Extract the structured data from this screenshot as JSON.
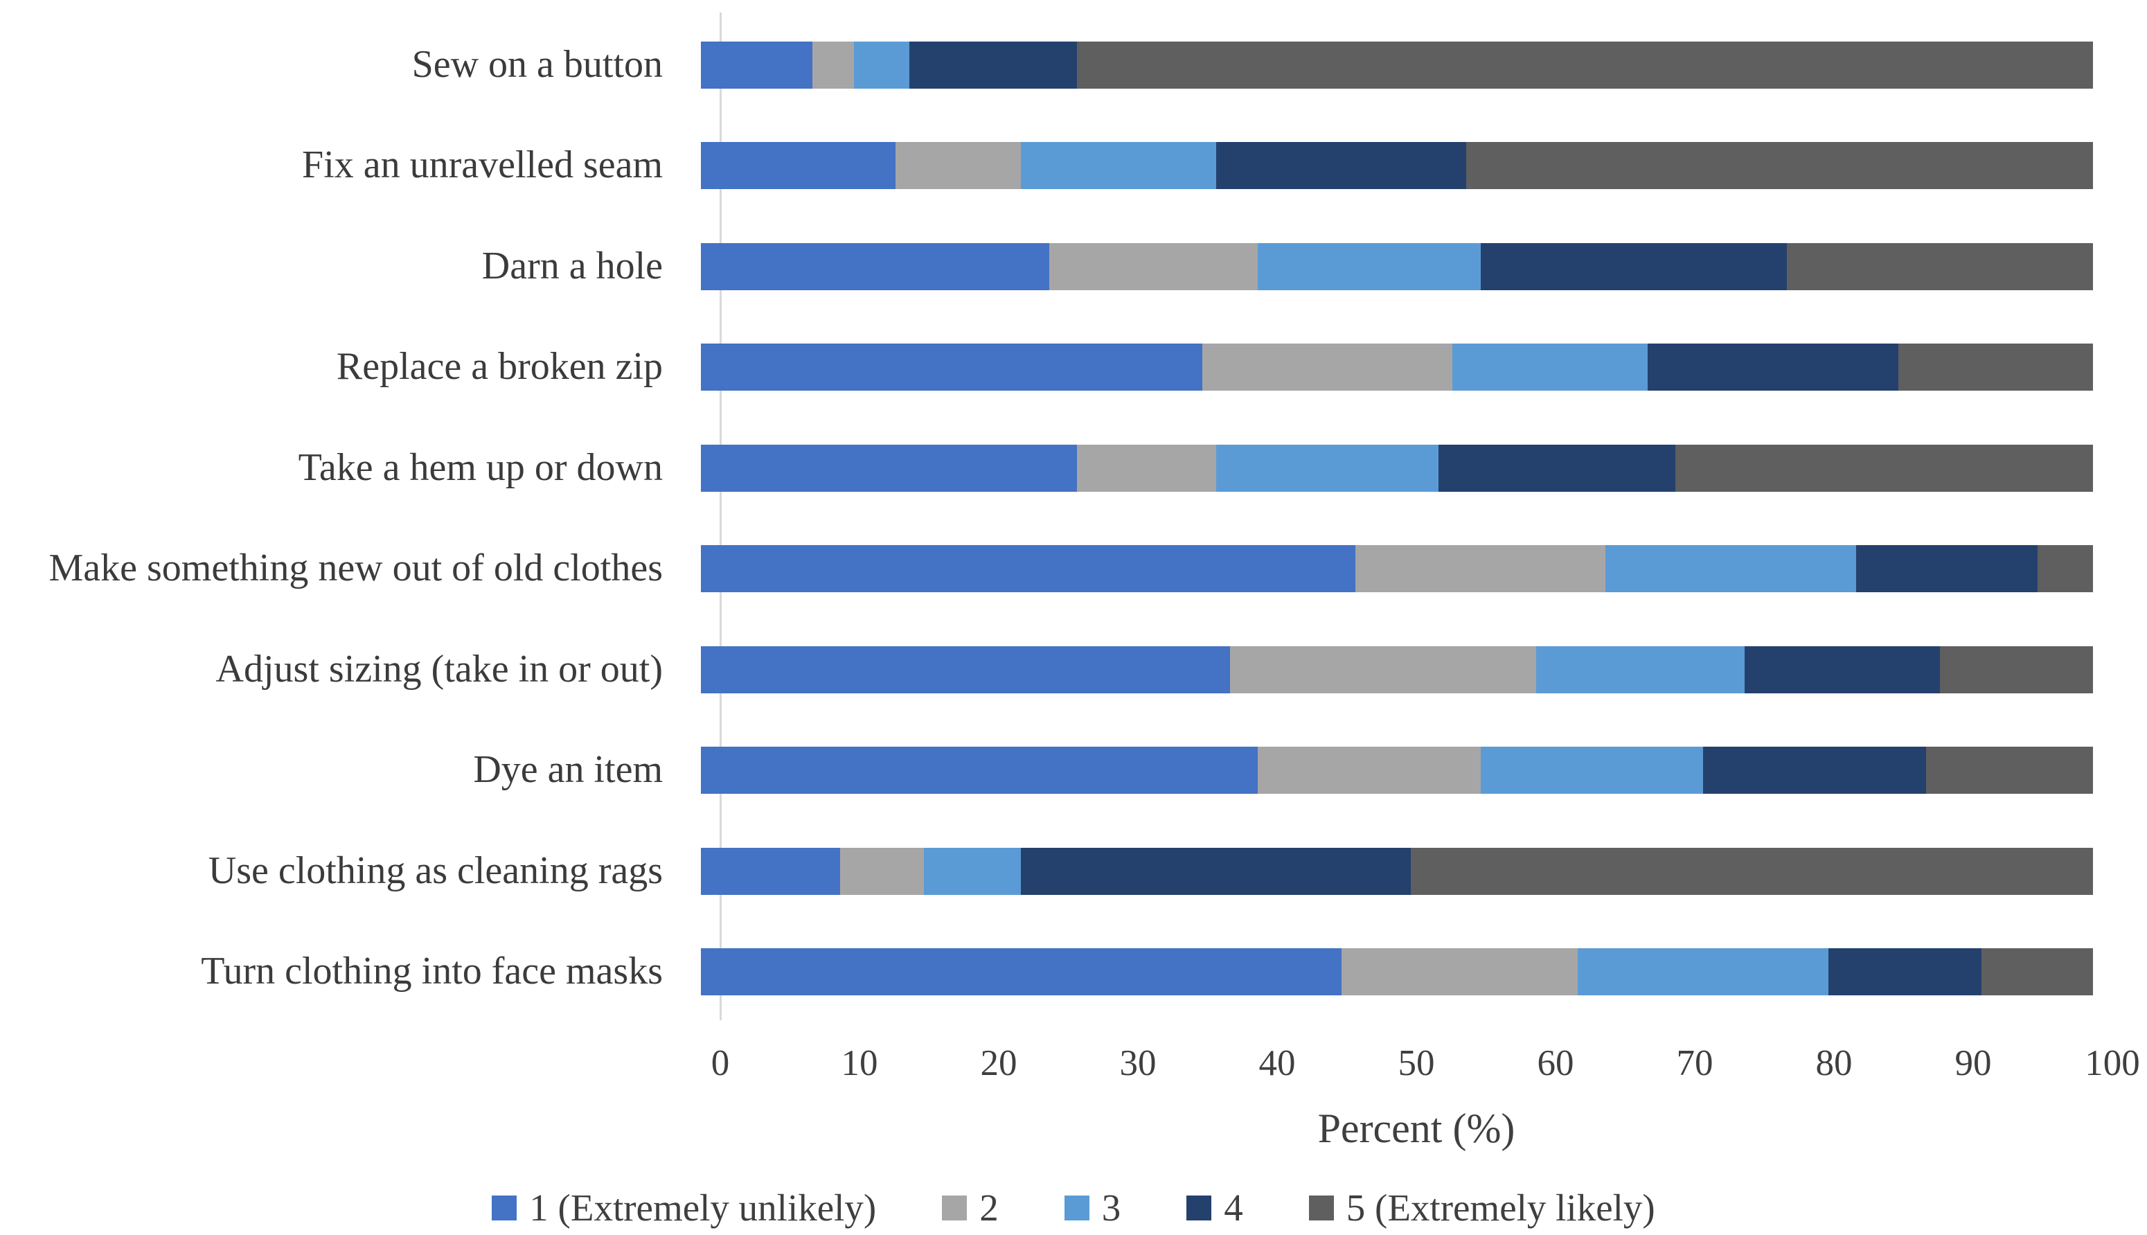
{
  "chart_data": {
    "type": "bar",
    "orientation": "horizontal",
    "stacked": true,
    "title": "",
    "xlabel": "Percent (%)",
    "ylabel": "",
    "xlim": [
      0,
      100
    ],
    "xticks": [
      0,
      10,
      20,
      30,
      40,
      50,
      60,
      70,
      80,
      90,
      100
    ],
    "grid": false,
    "legend_position": "bottom",
    "categories": [
      "Sew on a button",
      "Fix an unravelled seam",
      "Darn a hole",
      "Replace a broken zip",
      "Take a hem up or down",
      "Make something new out of old clothes",
      "Adjust sizing (take in or out)",
      "Dye an item",
      "Use clothing as cleaning rags",
      "Turn clothing into face masks"
    ],
    "series": [
      {
        "name": "1 (Extremely unlikely)",
        "color": "#4472C4",
        "values": [
          8,
          14,
          25,
          36,
          27,
          47,
          38,
          40,
          10,
          46
        ]
      },
      {
        "name": "2",
        "color": "#A6A6A6",
        "values": [
          3,
          9,
          15,
          18,
          10,
          18,
          22,
          16,
          6,
          17
        ]
      },
      {
        "name": "3",
        "color": "#5B9BD5",
        "values": [
          4,
          14,
          16,
          14,
          16,
          18,
          15,
          16,
          7,
          18
        ]
      },
      {
        "name": "4",
        "color": "#24416E",
        "values": [
          12,
          18,
          22,
          18,
          17,
          13,
          14,
          16,
          28,
          11
        ]
      },
      {
        "name": "5 (Extremely likely)",
        "color": "#5F5F5F",
        "values": [
          73,
          45,
          22,
          14,
          30,
          4,
          11,
          12,
          49,
          8
        ]
      }
    ],
    "axis_line_color": "#D9D9D9",
    "text_color": "#3F3F3F"
  }
}
